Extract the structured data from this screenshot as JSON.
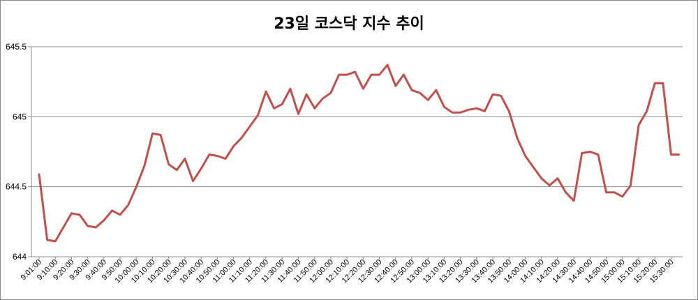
{
  "chart_data": {
    "type": "line",
    "title": "23일 코스닥 지수 추이",
    "xlabel": "",
    "ylabel": "",
    "ylim": [
      644,
      645.5
    ],
    "yticks": [
      644,
      644.5,
      645,
      645.5
    ],
    "ytick_labels": [
      "644",
      "644.5",
      "645",
      "645.5"
    ],
    "grid": true,
    "line_color": "#c0504d",
    "x_tick_labels": [
      "9:01:00",
      "9:10:00",
      "9:20:00",
      "9:30:00",
      "9:40:00",
      "9:50:00",
      "10:00:00",
      "10:10:00",
      "10:20:00",
      "10:30:00",
      "10:40:00",
      "10:50:00",
      "11:00:00",
      "11:10:00",
      "11:20:00",
      "11:30:00",
      "11:40:00",
      "11:50:00",
      "12:00:00",
      "12:10:00",
      "12:20:00",
      "12:30:00",
      "12:40:00",
      "12:50:00",
      "13:00:00",
      "13:10:00",
      "13:20:00",
      "13:30:00",
      "13:40:00",
      "13:50:00",
      "14:00:00",
      "14:10:00",
      "14:20:00",
      "14:30:00",
      "14:40:00",
      "14:50:00",
      "15:00:00",
      "15:10:00",
      "15:20:00",
      "15:30:00"
    ],
    "series": [
      {
        "values": [
          644.59,
          644.12,
          644.11,
          644.21,
          644.31,
          644.3,
          644.22,
          644.21,
          644.26,
          644.33,
          644.3,
          644.37,
          644.5,
          644.65,
          644.88,
          644.87,
          644.66,
          644.62,
          644.7,
          644.54,
          644.63,
          644.73,
          644.72,
          644.7,
          644.79,
          644.85,
          644.93,
          645.01,
          645.18,
          645.06,
          645.09,
          645.2,
          645.02,
          645.16,
          645.06,
          645.13,
          645.17,
          645.3,
          645.3,
          645.32,
          645.2,
          645.3,
          645.3,
          645.37,
          645.22,
          645.3,
          645.19,
          645.17,
          645.12,
          645.19,
          645.07,
          645.03,
          645.03,
          645.05,
          645.06,
          645.04,
          645.16,
          645.15,
          645.04,
          644.85,
          644.72,
          644.64,
          644.56,
          644.51,
          644.56,
          644.46,
          644.4,
          644.74,
          644.75,
          644.73,
          644.46,
          644.46,
          644.43,
          644.51,
          644.94,
          645.04,
          645.24,
          645.24,
          644.73,
          644.73
        ]
      }
    ]
  }
}
